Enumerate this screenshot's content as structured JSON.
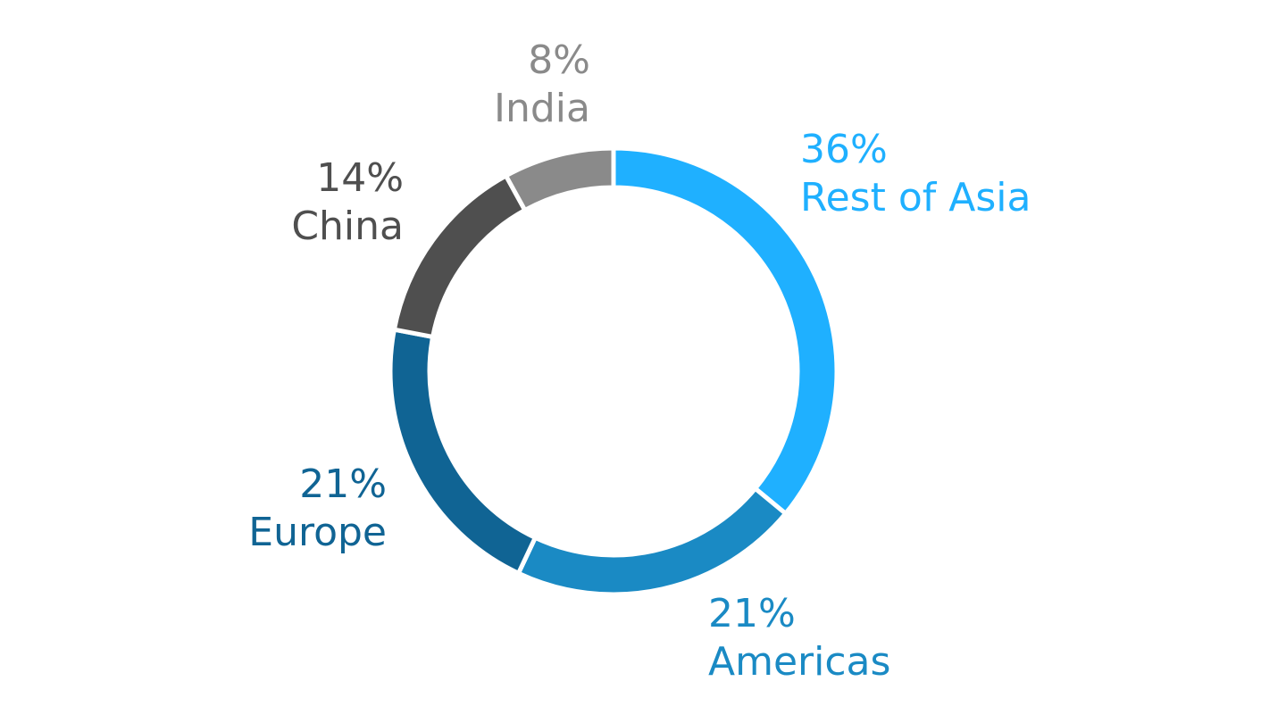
{
  "chart_data": {
    "type": "donut",
    "categories": [
      "Rest of Asia",
      "Americas",
      "Europe",
      "China",
      "India"
    ],
    "values": [
      36,
      21,
      21,
      14,
      8
    ],
    "value_labels": [
      "36%",
      "21%",
      "21%",
      "14%",
      "8%"
    ],
    "colors": [
      "#1fb0ff",
      "#1a8ac4",
      "#106494",
      "#4f4f4f",
      "#8a8a8a"
    ]
  }
}
